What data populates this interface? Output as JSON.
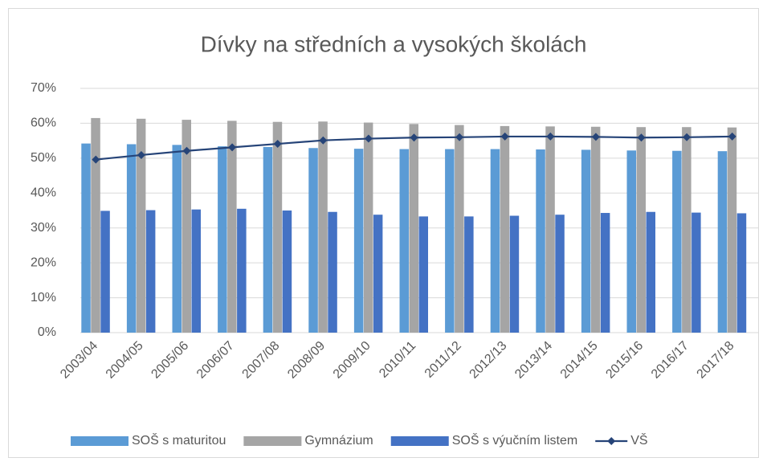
{
  "chart_data": {
    "type": "bar",
    "title": "Dívky na středních a vysokých školách",
    "categories": [
      "2003/04",
      "2004/05",
      "2005/06",
      "2006/07",
      "2007/08",
      "2008/09",
      "2009/10",
      "2010/11",
      "2011/12",
      "2012/13",
      "2013/14",
      "2014/15",
      "2015/16",
      "2016/17",
      "2017/18"
    ],
    "series": [
      {
        "name": "SOŠ s maturitou",
        "type": "bar",
        "color": "#5b9bd5",
        "values": [
          54.2,
          54.0,
          53.8,
          53.4,
          53.2,
          52.9,
          52.7,
          52.6,
          52.6,
          52.6,
          52.5,
          52.4,
          52.2,
          52.1,
          52.0
        ]
      },
      {
        "name": "Gymnázium",
        "type": "bar",
        "color": "#a5a5a5",
        "values": [
          61.5,
          61.3,
          61.0,
          60.7,
          60.4,
          60.5,
          60.2,
          59.8,
          59.5,
          59.2,
          59.1,
          59.0,
          58.9,
          58.9,
          58.8
        ]
      },
      {
        "name": "SOŠ s výučním listem",
        "type": "bar",
        "color": "#4472c4",
        "values": [
          34.9,
          35.1,
          35.3,
          35.5,
          35.0,
          34.6,
          33.8,
          33.3,
          33.3,
          33.5,
          33.8,
          34.3,
          34.6,
          34.4,
          34.2
        ]
      },
      {
        "name": "VŠ",
        "type": "line",
        "color": "#264478",
        "values": [
          49.6,
          50.9,
          52.1,
          53.1,
          54.1,
          55.1,
          55.6,
          55.9,
          56.0,
          56.2,
          56.2,
          56.1,
          55.9,
          56.0,
          56.2
        ]
      }
    ],
    "ylim": [
      0,
      70
    ],
    "yticks": [
      {
        "value": 0,
        "label": "0%"
      },
      {
        "value": 10,
        "label": "10%"
      },
      {
        "value": 20,
        "label": "20%"
      },
      {
        "value": 30,
        "label": "30%"
      },
      {
        "value": 40,
        "label": "40%"
      },
      {
        "value": 50,
        "label": "50%"
      },
      {
        "value": 60,
        "label": "60%"
      },
      {
        "value": 70,
        "label": "70%"
      }
    ],
    "grid": true,
    "legend": "bottom"
  }
}
